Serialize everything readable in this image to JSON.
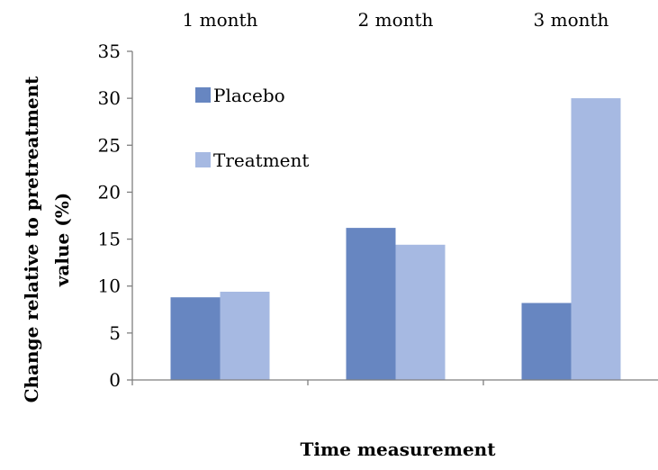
{
  "chart_data": {
    "type": "bar",
    "categories": [
      "1 month",
      "2 month",
      "3 month"
    ],
    "series": [
      {
        "name": "Placebo",
        "values": [
          8.8,
          16.2,
          8.2
        ],
        "color": "#6786c1"
      },
      {
        "name": "Treatment",
        "values": [
          9.4,
          14.4,
          30.0
        ],
        "color": "#a6b9e2"
      }
    ],
    "xlabel": "Time measurement",
    "ylabel_lines": [
      "Change relative to pretreatment",
      "value (%)"
    ],
    "ylim": [
      0,
      35
    ],
    "yticks": [
      0,
      5,
      10,
      15,
      20,
      25,
      30,
      35
    ],
    "grid": false,
    "category_labels_position": "top",
    "legend_position": "top-left"
  }
}
